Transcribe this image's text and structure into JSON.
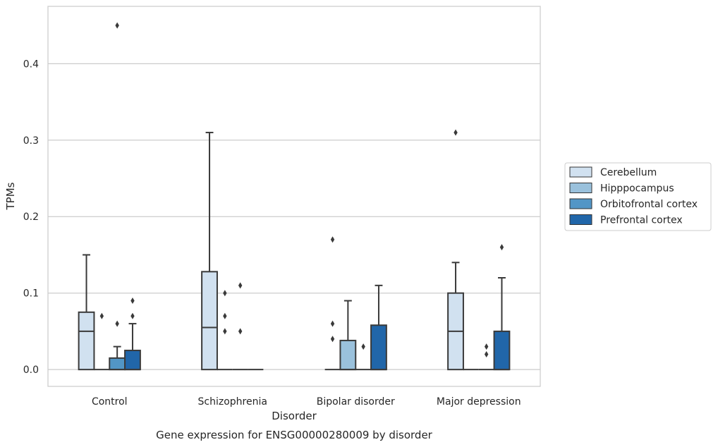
{
  "chart_data": {
    "type": "box",
    "title": "Gene expression for ENSG00000280009 by disorder",
    "xlabel": "Disorder",
    "ylabel": "TPMs",
    "ylim": [
      -0.022,
      0.475
    ],
    "yticks": [
      0.0,
      0.1,
      0.2,
      0.3,
      0.4
    ],
    "ytick_labels": [
      "0.0",
      "0.1",
      "0.2",
      "0.3",
      "0.4"
    ],
    "grid": "horizontal",
    "legend_position": "right",
    "categories": [
      "Control",
      "Schizophrenia",
      "Bipolar disorder",
      "Major depression"
    ],
    "series": [
      {
        "name": "Cerebellum",
        "color": "#d1e1f0",
        "boxes": [
          {
            "whislo": 0.0,
            "q1": 0.0,
            "med": 0.05,
            "q3": 0.075,
            "whishi": 0.15,
            "fliers": []
          },
          {
            "whislo": 0.0,
            "q1": 0.0,
            "med": 0.055,
            "q3": 0.128,
            "whishi": 0.31,
            "fliers": []
          },
          {
            "whislo": 0.0,
            "q1": 0.0,
            "med": 0.0,
            "q3": 0.0,
            "whishi": 0.0,
            "fliers": [
              0.17,
              0.06,
              0.04
            ]
          },
          {
            "whislo": 0.0,
            "q1": 0.0,
            "med": 0.05,
            "q3": 0.1,
            "whishi": 0.14,
            "fliers": [
              0.31
            ]
          }
        ]
      },
      {
        "name": "Hipppocampus",
        "color": "#9ac1dc",
        "boxes": [
          {
            "whislo": 0.0,
            "q1": 0.0,
            "med": 0.0,
            "q3": 0.0,
            "whishi": 0.0,
            "fliers": [
              0.07
            ]
          },
          {
            "whislo": 0.0,
            "q1": 0.0,
            "med": 0.0,
            "q3": 0.0,
            "whishi": 0.0,
            "fliers": [
              0.1,
              0.07,
              0.05
            ]
          },
          {
            "whislo": 0.0,
            "q1": 0.0,
            "med": 0.0,
            "q3": 0.038,
            "whishi": 0.09,
            "fliers": []
          },
          {
            "whislo": 0.0,
            "q1": 0.0,
            "med": 0.0,
            "q3": 0.0,
            "whishi": 0.0,
            "fliers": []
          }
        ]
      },
      {
        "name": "Orbitofrontal cortex",
        "color": "#5296c6",
        "boxes": [
          {
            "whislo": 0.0,
            "q1": 0.0,
            "med": 0.0,
            "q3": 0.015,
            "whishi": 0.03,
            "fliers": [
              0.45,
              0.06
            ]
          },
          {
            "whislo": 0.0,
            "q1": 0.0,
            "med": 0.0,
            "q3": 0.0,
            "whishi": 0.0,
            "fliers": [
              0.11,
              0.05
            ]
          },
          {
            "whislo": 0.0,
            "q1": 0.0,
            "med": 0.0,
            "q3": 0.0,
            "whishi": 0.0,
            "fliers": [
              0.03
            ]
          },
          {
            "whislo": 0.0,
            "q1": 0.0,
            "med": 0.0,
            "q3": 0.0,
            "whishi": 0.0,
            "fliers": [
              0.03,
              0.02
            ]
          }
        ]
      },
      {
        "name": "Prefrontal cortex",
        "color": "#2166a9",
        "boxes": [
          {
            "whislo": 0.0,
            "q1": 0.0,
            "med": 0.0,
            "q3": 0.025,
            "whishi": 0.06,
            "fliers": [
              0.09,
              0.07
            ]
          },
          {
            "whislo": 0.0,
            "q1": 0.0,
            "med": 0.0,
            "q3": 0.0,
            "whishi": 0.0,
            "fliers": []
          },
          {
            "whislo": 0.0,
            "q1": 0.0,
            "med": 0.0,
            "q3": 0.058,
            "whishi": 0.11,
            "fliers": []
          },
          {
            "whislo": 0.0,
            "q1": 0.0,
            "med": 0.0,
            "q3": 0.05,
            "whishi": 0.12,
            "fliers": [
              0.16
            ]
          }
        ]
      }
    ]
  }
}
